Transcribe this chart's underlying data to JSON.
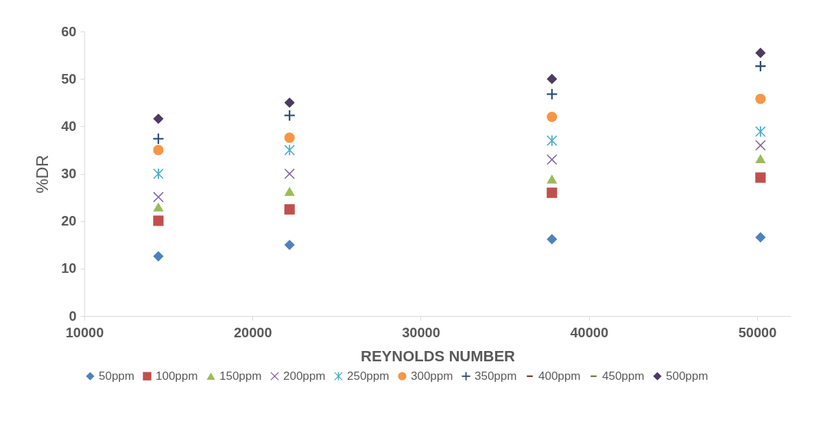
{
  "chart_data": {
    "type": "scatter",
    "xlabel": "REYNOLDS NUMBER",
    "ylabel": "%DR",
    "x": [
      14400,
      22200,
      37800,
      50200
    ],
    "xlim": [
      10000,
      52000
    ],
    "xticks": [
      10000,
      20000,
      30000,
      40000,
      50000
    ],
    "ylim": [
      0,
      60
    ],
    "yticks": [
      0,
      10,
      20,
      30,
      40,
      50,
      60
    ],
    "grid": false,
    "legend": "bottom",
    "series": [
      {
        "name": "50ppm",
        "color": "#4f81bd",
        "marker": "diamond",
        "values": [
          12.6,
          15,
          16.2,
          16.6
        ]
      },
      {
        "name": "100ppm",
        "color": "#c0504d",
        "marker": "square",
        "values": [
          20.1,
          22.5,
          26,
          29.2
        ]
      },
      {
        "name": "150ppm",
        "color": "#9bbb59",
        "marker": "triangle",
        "values": [
          23,
          26.3,
          28.9,
          33.2
        ]
      },
      {
        "name": "200ppm",
        "color": "#8064a2",
        "marker": "x",
        "values": [
          25.1,
          30,
          33,
          36
        ]
      },
      {
        "name": "250ppm",
        "color": "#4bacc6",
        "marker": "star",
        "values": [
          30,
          35,
          37,
          38.9
        ]
      },
      {
        "name": "300ppm",
        "color": "#f79646",
        "marker": "circle",
        "values": [
          35,
          37.6,
          42,
          45.8
        ]
      },
      {
        "name": "350ppm",
        "color": "#2c4d75",
        "marker": "cross",
        "values": [
          37.4,
          42.3,
          46.8,
          52.7
        ]
      },
      {
        "name": "400ppm",
        "color": "#772c2a",
        "marker": "dash",
        "values": [
          null,
          null,
          null,
          null
        ]
      },
      {
        "name": "450ppm",
        "color": "#5f7530",
        "marker": "dash",
        "values": [
          null,
          null,
          null,
          null
        ]
      },
      {
        "name": "500ppm",
        "color": "#4d3b62",
        "marker": "diamond",
        "values": [
          41.6,
          45,
          50,
          55.5
        ]
      }
    ]
  }
}
